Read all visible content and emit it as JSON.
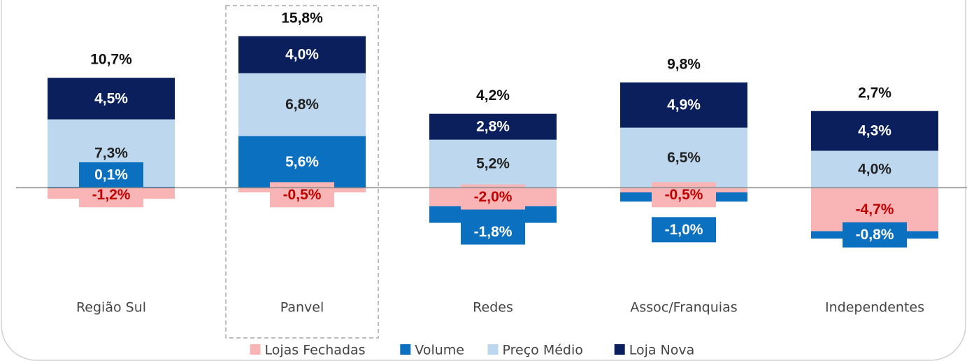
{
  "chart_data": {
    "type": "stacked_bar",
    "categories": [
      "Região Sul",
      "Panvel",
      "Redes",
      "Assoc/Franquias",
      "Independentes"
    ],
    "series": [
      {
        "name": "Lojas Fechadas",
        "color": "#f9b5b5",
        "label_color": "#c00000",
        "values": [
          -1.2,
          -0.5,
          -2.0,
          -0.5,
          -4.7
        ],
        "value_labels": [
          "-1,2%",
          "-0,5%",
          "-2,0%",
          "-0,5%",
          "-4,7%"
        ]
      },
      {
        "name": "Volume",
        "color": "#0b70c0",
        "label_color": "#ffffff",
        "values": [
          0.1,
          5.6,
          -1.8,
          -1.0,
          -0.8
        ],
        "value_labels": [
          "0,1%",
          "5,6%",
          "-1,8%",
          "-1,0%",
          "-0,8%"
        ]
      },
      {
        "name": "Preço Médio",
        "color": "#bdd7ee",
        "label_color": "#222222",
        "values": [
          7.3,
          6.8,
          5.2,
          6.5,
          4.0
        ],
        "value_labels": [
          "7,3%",
          "6,8%",
          "5,2%",
          "6,5%",
          "4,0%"
        ]
      },
      {
        "name": "Loja Nova",
        "color": "#0a1f5c",
        "label_color": "#ffffff",
        "values": [
          4.5,
          4.0,
          2.8,
          4.9,
          4.3
        ],
        "value_labels": [
          "4,5%",
          "4,0%",
          "2,8%",
          "4,9%",
          "4,3%"
        ]
      }
    ],
    "totals": [
      10.7,
      15.8,
      4.2,
      9.8,
      2.7
    ],
    "total_labels": [
      "10,7%",
      "15,8%",
      "4,2%",
      "9,8%",
      "2,7%"
    ],
    "ylim": [
      -8,
      18.5
    ],
    "highlight": 1
  }
}
